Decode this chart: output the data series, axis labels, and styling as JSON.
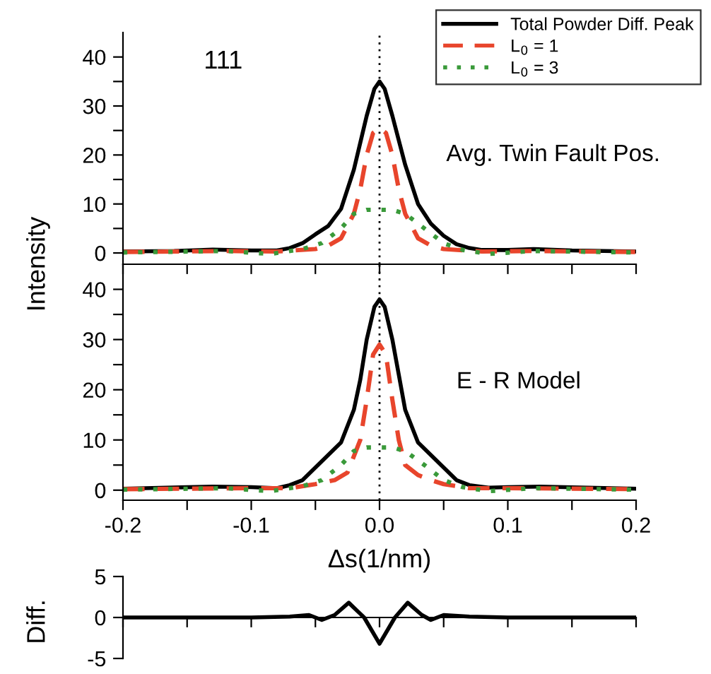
{
  "chart_data": [
    {
      "type": "line",
      "ylabel": "Intensity",
      "annotations": [
        "111",
        "Avg. Twin Fault Pos."
      ],
      "legend": "top right",
      "tick_labels": "y",
      "xlim": [
        -0.2,
        0.2
      ],
      "xticks": [
        {
          "value": -0.2,
          "label": null
        },
        {
          "value": -0.15,
          "label": null
        },
        {
          "value": -0.1,
          "label": null
        },
        {
          "value": -0.05,
          "label": null
        },
        {
          "value": 0,
          "label": null
        },
        {
          "value": 0.05,
          "label": null
        },
        {
          "value": 0.1,
          "label": null
        },
        {
          "value": 0.15,
          "label": null
        },
        {
          "value": 0.2,
          "label": null
        }
      ],
      "ylim": [
        -2.3,
        45
      ],
      "yticks": [
        0,
        {
          "value": 5,
          "label": null
        },
        10,
        {
          "value": 15,
          "label": null
        },
        20,
        {
          "value": 25,
          "label": null
        },
        30,
        {
          "value": 35,
          "label": null
        },
        40
      ],
      "ref_lines": [
        {
          "axis": "x",
          "value": 0,
          "color": "#000000",
          "line_style": "dotted"
        }
      ],
      "series": [
        {
          "name": "Total Powder Diff. Peak",
          "color": "#000000",
          "line_style": "solid",
          "x": [
            -0.2,
            -0.16,
            -0.13,
            -0.1,
            -0.08,
            -0.07,
            -0.06,
            -0.05,
            -0.04,
            -0.03,
            -0.02,
            -0.01,
            -0.004,
            0,
            0.004,
            0.01,
            0.02,
            0.03,
            0.04,
            0.05,
            0.06,
            0.07,
            0.08,
            0.1,
            0.12,
            0.15,
            0.2
          ],
          "values": [
            0.3,
            0.4,
            0.7,
            0.5,
            0.5,
            1.0,
            2.0,
            3.8,
            5.5,
            9,
            17,
            28,
            33.5,
            35,
            33.5,
            28,
            18,
            10,
            6,
            3.5,
            1.8,
            1.0,
            0.6,
            0.6,
            0.8,
            0.5,
            0.3
          ]
        },
        {
          "name": "L$_{0}$ = 1",
          "color": "#e8452c",
          "line_style": "dashed",
          "x": [
            -0.2,
            -0.12,
            -0.08,
            -0.05,
            -0.04,
            -0.03,
            -0.02,
            -0.015,
            -0.01,
            -0.005,
            0,
            0.005,
            0.01,
            0.015,
            0.02,
            0.03,
            0.04,
            0.05,
            0.08,
            0.12,
            0.2
          ],
          "values": [
            0.2,
            0.4,
            0.3,
            0.8,
            1.5,
            3,
            8,
            13,
            20,
            24.5,
            25.5,
            24.5,
            20,
            13,
            8,
            3,
            1.5,
            0.8,
            0.3,
            0.4,
            0.2
          ]
        },
        {
          "name": "L$_{0}$ = 3",
          "color": "#3a9a3a",
          "line_style": "dotted",
          "x": [
            -0.2,
            -0.12,
            -0.085,
            -0.06,
            -0.045,
            -0.03,
            -0.02,
            -0.01,
            0,
            0.01,
            0.02,
            0.035,
            0.05,
            0.065,
            0.085,
            0.12,
            0.2
          ],
          "values": [
            0.1,
            0.4,
            -0.2,
            0.8,
            2,
            5,
            8,
            8.8,
            8.8,
            8.8,
            8,
            5,
            2,
            0.6,
            -0.2,
            0.4,
            0.1
          ]
        }
      ]
    },
    {
      "type": "line",
      "xlabel": "Δs(1/nm)",
      "annotations": [
        "E - R Model"
      ],
      "xlim": [
        -0.2,
        0.2
      ],
      "xticks": [
        -0.2,
        {
          "value": -0.15,
          "label": null
        },
        -0.1,
        {
          "value": -0.05,
          "label": null
        },
        {
          "value": 0,
          "label": "0.0"
        },
        {
          "value": 0.05,
          "label": null
        },
        0.1,
        {
          "value": 0.15,
          "label": null
        },
        0.2
      ],
      "ylim": [
        -2,
        45
      ],
      "yticks": [
        0,
        {
          "value": 5,
          "label": null
        },
        10,
        {
          "value": 15,
          "label": null
        },
        20,
        {
          "value": 25,
          "label": null
        },
        30,
        {
          "value": 35,
          "label": null
        },
        40
      ],
      "ref_lines": [
        {
          "axis": "x",
          "value": 0,
          "color": "#000000",
          "line_style": "dotted"
        }
      ],
      "series": [
        {
          "color": "#000000",
          "line_style": "solid",
          "x": [
            -0.2,
            -0.13,
            -0.1,
            -0.08,
            -0.07,
            -0.06,
            -0.05,
            -0.04,
            -0.03,
            -0.02,
            -0.015,
            -0.01,
            -0.004,
            0,
            0.004,
            0.01,
            0.015,
            0.02,
            0.03,
            0.04,
            0.05,
            0.06,
            0.07,
            0.085,
            0.1,
            0.125,
            0.2
          ],
          "values": [
            0.3,
            0.7,
            0.6,
            0.4,
            1,
            2,
            4.5,
            7,
            9.5,
            16,
            22,
            30,
            36.5,
            38,
            36.5,
            30,
            23,
            16,
            9.5,
            7,
            4.5,
            2,
            1,
            0.5,
            0.6,
            0.7,
            0.3
          ]
        },
        {
          "color": "#e8452c",
          "line_style": "dashed",
          "x": [
            -0.2,
            -0.1,
            -0.07,
            -0.05,
            -0.035,
            -0.025,
            -0.015,
            -0.01,
            -0.005,
            0,
            0.005,
            0.01,
            0.015,
            0.02,
            0.03,
            0.04,
            0.05,
            0.07,
            0.1,
            0.2
          ],
          "values": [
            0.2,
            0.4,
            0.4,
            1.2,
            2,
            3.5,
            10,
            18,
            27,
            29,
            27,
            18,
            10,
            5,
            3,
            2,
            1.2,
            0.4,
            0.4,
            0.2
          ]
        },
        {
          "color": "#3a9a3a",
          "line_style": "dotted",
          "x": [
            -0.2,
            -0.12,
            -0.085,
            -0.06,
            -0.045,
            -0.03,
            -0.02,
            -0.01,
            0,
            0.01,
            0.02,
            0.035,
            0.05,
            0.065,
            0.085,
            0.12,
            0.2
          ],
          "values": [
            0.1,
            0.4,
            -0.2,
            0.8,
            2,
            5,
            7.8,
            8.5,
            8.5,
            8.5,
            7.8,
            5,
            2,
            0.6,
            -0.2,
            0.4,
            0.1
          ]
        }
      ]
    },
    {
      "type": "line",
      "ylabel": "Diff.",
      "tick_labels": "y",
      "xlim": [
        -0.2,
        0.2
      ],
      "xticks": [
        {
          "value": -0.2,
          "label": null
        },
        {
          "value": -0.15,
          "label": null
        },
        {
          "value": -0.1,
          "label": null
        },
        {
          "value": -0.05,
          "label": null
        },
        {
          "value": 0,
          "label": null
        },
        {
          "value": 0.05,
          "label": null
        },
        {
          "value": 0.1,
          "label": null
        },
        {
          "value": 0.15,
          "label": null
        },
        {
          "value": 0.2,
          "label": null
        }
      ],
      "ylim": [
        -5,
        5
      ],
      "yticks": [
        -5,
        0,
        5
      ],
      "series": [
        {
          "color": "#000000",
          "line_style": "solid",
          "x": [
            -0.2,
            -0.1,
            -0.07,
            -0.055,
            -0.045,
            -0.035,
            -0.024,
            -0.012,
            0,
            0.012,
            0.022,
            0.033,
            0.04,
            0.05,
            0.07,
            0.1,
            0.2
          ],
          "values": [
            0,
            0,
            0.1,
            0.3,
            -0.3,
            0.3,
            1.8,
            0,
            -3.2,
            0,
            1.8,
            0.3,
            -0.3,
            0.3,
            0.1,
            0,
            0
          ]
        }
      ]
    }
  ]
}
